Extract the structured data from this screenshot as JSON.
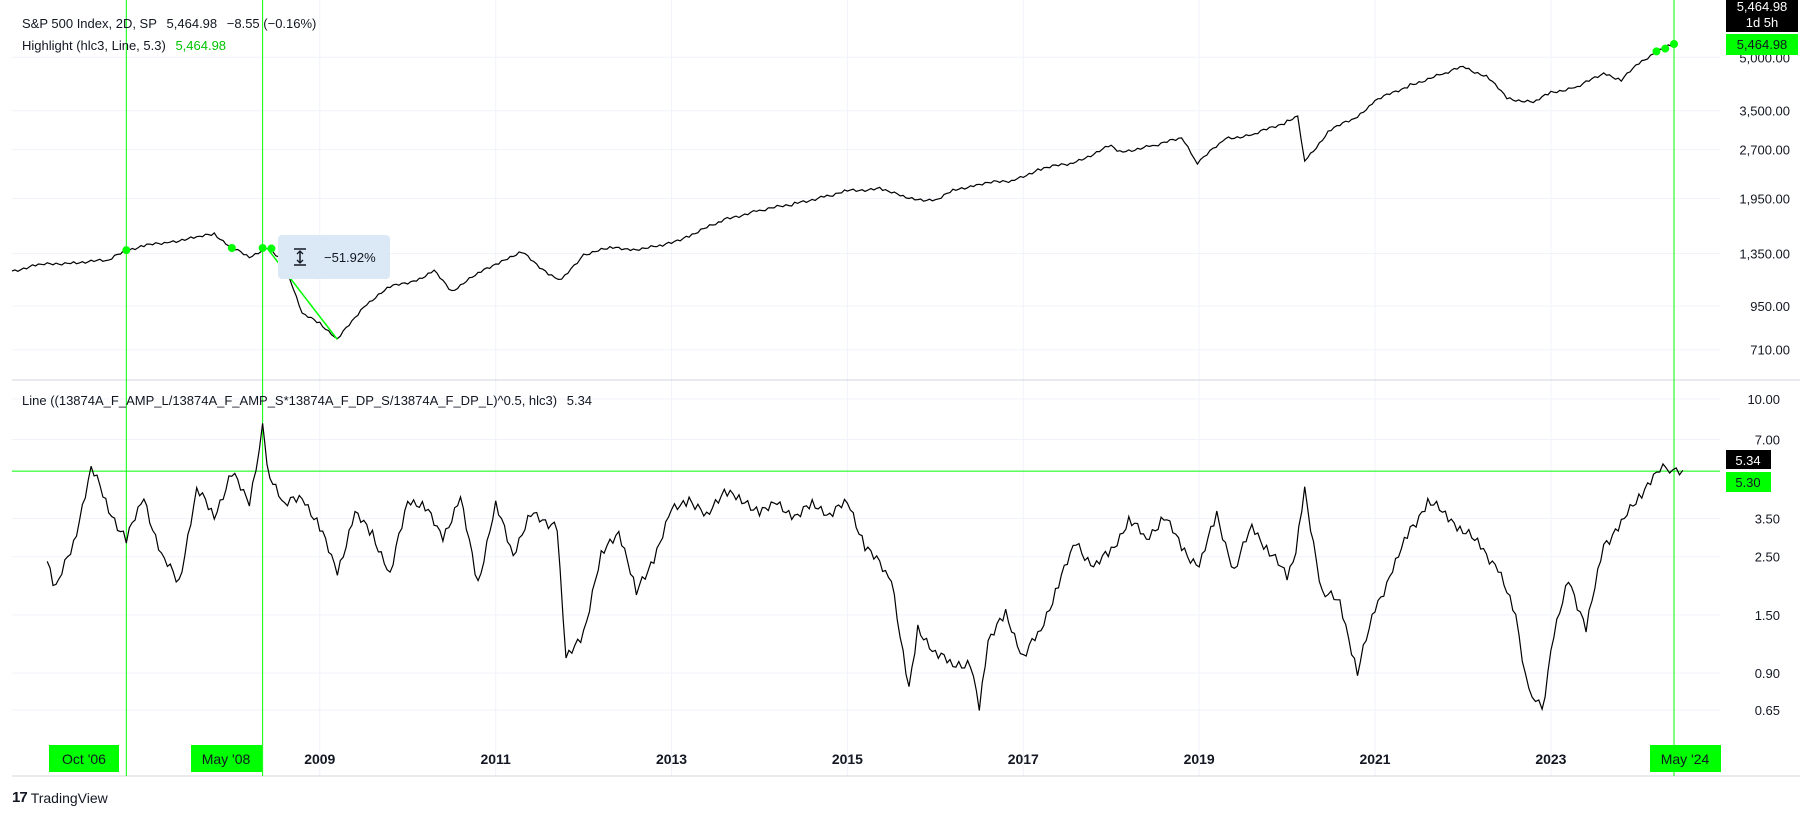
{
  "colors": {
    "series": "#000000",
    "highlight": "#00ff00",
    "grid": "#f0f3fa",
    "axis_text": "#131722",
    "measure_bg": "#dbe9f6"
  },
  "legend": {
    "symbol": "S&P 500 Index, 2D, SP",
    "price": "5,464.98",
    "change": "−8.55 (−0.16%)",
    "highlight_label": "Highlight (hlc3, Line, 5.3)",
    "highlight_value": "5,464.98",
    "indicator_label": "Line ((13874A_F_AMP_L/13874A_F_AMP_S*13874A_F_DP_S/13874A_F_DP_L)^0.5, hlc3)",
    "indicator_value": "5.34"
  },
  "price_badges": {
    "countdown": "1d 5h",
    "last_price": "5,464.98",
    "indicator_last": "5.34",
    "threshold": "5.30",
    "top_cut": "5,464.98"
  },
  "measure_label": "−51.92%",
  "branding": {
    "name": "TradingView",
    "mark": "17"
  },
  "chart_data": [
    {
      "type": "line",
      "title": "S&P 500 Index, 2D, SP",
      "y_scale": "log",
      "ylim": [
        620,
        6000
      ],
      "y_ticks": [
        "5,000.00",
        "3,500.00",
        "2,700.00",
        "1,950.00",
        "1,350.00",
        "950.00",
        "710.00"
      ],
      "y_tick_values": [
        5000,
        3500,
        2700,
        1950,
        1350,
        950,
        710
      ],
      "x_range": [
        2005.5,
        2024.9
      ],
      "x_ticks": [
        "2009",
        "2011",
        "2013",
        "2015",
        "2017",
        "2019",
        "2021",
        "2023"
      ],
      "x_tick_values": [
        2009,
        2011,
        2013,
        2015,
        2017,
        2019,
        2021,
        2023
      ],
      "x": [
        2005.5,
        2005.8,
        2006.2,
        2006.6,
        2006.8,
        2007.0,
        2007.3,
        2007.6,
        2007.8,
        2008.0,
        2008.2,
        2008.4,
        2008.6,
        2008.8,
        2009.0,
        2009.2,
        2009.5,
        2009.8,
        2010.1,
        2010.3,
        2010.5,
        2010.8,
        2011.1,
        2011.3,
        2011.6,
        2011.75,
        2012.0,
        2012.3,
        2012.6,
        2012.9,
        2013.2,
        2013.6,
        2014.0,
        2014.4,
        2014.8,
        2015.0,
        2015.4,
        2015.7,
        2016.0,
        2016.2,
        2016.5,
        2016.9,
        2017.2,
        2017.6,
        2018.0,
        2018.1,
        2018.5,
        2018.8,
        2018.98,
        2019.3,
        2019.6,
        2020.0,
        2020.12,
        2020.2,
        2020.5,
        2020.8,
        2021.0,
        2021.4,
        2021.8,
        2022.0,
        2022.3,
        2022.5,
        2022.8,
        2023.0,
        2023.3,
        2023.6,
        2023.8,
        2024.0,
        2024.2,
        2024.4
      ],
      "y": [
        1200,
        1250,
        1270,
        1290,
        1380,
        1420,
        1460,
        1500,
        1540,
        1400,
        1320,
        1400,
        1270,
        900,
        850,
        760,
        950,
        1080,
        1130,
        1200,
        1050,
        1180,
        1300,
        1360,
        1180,
        1130,
        1340,
        1400,
        1390,
        1420,
        1520,
        1690,
        1800,
        1880,
        1990,
        2050,
        2080,
        1940,
        1930,
        2050,
        2150,
        2200,
        2380,
        2480,
        2780,
        2650,
        2780,
        2920,
        2480,
        2900,
        2980,
        3250,
        3380,
        2500,
        3100,
        3350,
        3750,
        4150,
        4500,
        4700,
        4350,
        3800,
        3700,
        3950,
        4100,
        4500,
        4300,
        4800,
        5200,
        5464.98
      ],
      "highlight_segments_note": "green",
      "measure": "−51.92%"
    },
    {
      "type": "line",
      "title": "Line ((13874A_F_AMP_L/13874A_F_AMP_S*13874A_F_DP_S/13874A_F_DP_L)^0.5, hlc3)",
      "y_scale": "log",
      "ylim": [
        0.5,
        11
      ],
      "y_ticks": [
        "10.00",
        "7.00",
        "3.50",
        "2.50",
        "1.50",
        "0.90",
        "0.65"
      ],
      "y_tick_values": [
        10,
        7,
        3.5,
        2.5,
        1.5,
        0.9,
        0.65
      ],
      "threshold": 5.3,
      "x": [
        2005.9,
        2006.0,
        2006.2,
        2006.4,
        2006.6,
        2006.8,
        2007.0,
        2007.2,
        2007.4,
        2007.6,
        2007.8,
        2008.0,
        2008.2,
        2008.35,
        2008.4,
        2008.6,
        2008.8,
        2009.0,
        2009.2,
        2009.4,
        2009.6,
        2009.8,
        2010.0,
        2010.2,
        2010.4,
        2010.6,
        2010.8,
        2011.0,
        2011.2,
        2011.4,
        2011.7,
        2011.8,
        2012.0,
        2012.2,
        2012.4,
        2012.6,
        2012.8,
        2013.0,
        2013.2,
        2013.4,
        2013.6,
        2013.8,
        2014.0,
        2014.2,
        2014.4,
        2014.6,
        2014.8,
        2015.0,
        2015.2,
        2015.5,
        2015.7,
        2015.8,
        2016.0,
        2016.2,
        2016.4,
        2016.5,
        2016.6,
        2016.8,
        2017.0,
        2017.2,
        2017.4,
        2017.6,
        2017.8,
        2018.0,
        2018.2,
        2018.4,
        2018.6,
        2018.8,
        2019.0,
        2019.2,
        2019.4,
        2019.6,
        2019.8,
        2020.0,
        2020.1,
        2020.2,
        2020.4,
        2020.6,
        2020.8,
        2021.0,
        2021.2,
        2021.4,
        2021.6,
        2021.8,
        2022.0,
        2022.2,
        2022.4,
        2022.6,
        2022.75,
        2022.9,
        2023.0,
        2023.2,
        2023.4,
        2023.6,
        2023.8,
        2024.0,
        2024.2,
        2024.35,
        2024.5
      ],
      "y": [
        2.4,
        1.9,
        2.8,
        5.5,
        3.8,
        2.9,
        4.2,
        2.5,
        2.0,
        4.5,
        3.6,
        5.2,
        4.0,
        7.8,
        5.5,
        3.9,
        4.3,
        3.2,
        2.2,
        3.6,
        3.1,
        2.1,
        4.2,
        3.8,
        3.0,
        4.1,
        2.0,
        3.9,
        2.6,
        3.6,
        3.3,
        1.0,
        1.3,
        2.5,
        3.2,
        1.8,
        2.5,
        3.7,
        4.2,
        3.5,
        4.6,
        4.0,
        3.8,
        3.9,
        3.6,
        3.9,
        3.7,
        4.0,
        2.8,
        2.0,
        0.8,
        1.3,
        1.1,
        0.95,
        1.0,
        0.65,
        1.2,
        1.5,
        1.05,
        1.3,
        2.0,
        2.8,
        2.3,
        2.6,
        3.5,
        2.9,
        3.6,
        2.7,
        2.3,
        3.6,
        2.2,
        3.3,
        2.6,
        2.1,
        2.6,
        4.5,
        1.8,
        1.7,
        0.9,
        1.6,
        2.2,
        3.2,
        4.0,
        3.7,
        3.1,
        2.8,
        2.2,
        1.5,
        0.75,
        0.65,
        1.1,
        2.1,
        1.3,
        2.8,
        3.3,
        4.3,
        5.2,
        5.5,
        5.34
      ],
      "x_labels_highlighted": [
        "Oct '06",
        "May '08",
        "May '24"
      ]
    }
  ]
}
